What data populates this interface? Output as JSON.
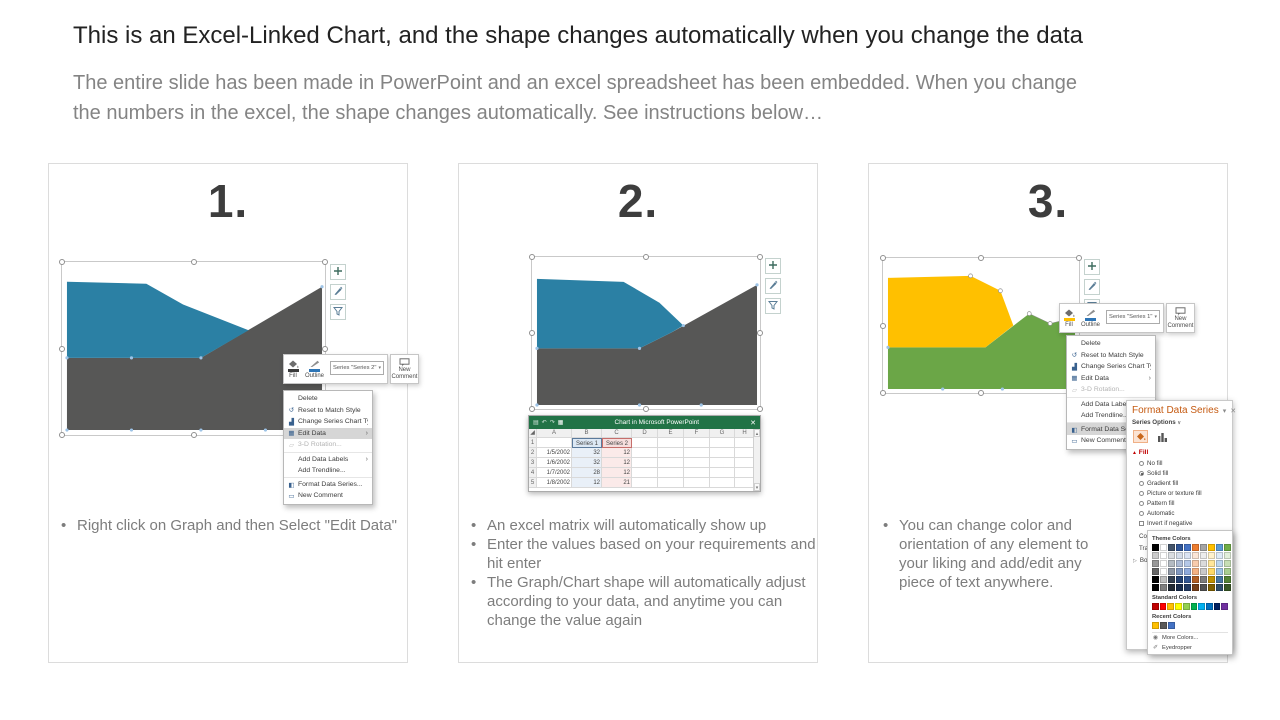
{
  "slide": {
    "title": "This is an Excel-Linked Chart, and the shape changes automatically when you change the data",
    "subtitle": "The entire slide has been made in PowerPoint and an excel spreadsheet has been embedded. When you change the numbers in the excel, the shape changes automatically. See instructions below…"
  },
  "colors": {
    "chart_blue": "#2B80A4",
    "chart_dark_gray": "#575756",
    "chart_yellow": "#FFC000",
    "chart_green": "#6BA647",
    "excel_green": "#217346",
    "pane_title_orange": "#C55A11",
    "fill_heading_red": "#C00000",
    "highlight_gray": "#D6D6D6"
  },
  "cards": [
    {
      "number": "1.",
      "bullets": [
        "Right click on Graph and then Select \"Edit Data\""
      ]
    },
    {
      "number": "2.",
      "bullets": [
        "An excel matrix will automatically show up",
        "Enter the values based on your requirements and hit enter",
        "The Graph/Chart shape will automatically adjust according to your data, and anytime you can change the value again"
      ]
    },
    {
      "number": "3.",
      "bullets": [
        "You can change color and orientation of any element to your liking and add/edit any piece of text anywhere."
      ]
    }
  ],
  "mini_toolbar": {
    "fill_label": "Fill",
    "outline_label": "Outline",
    "series_card1": "Series \"Series 2\"",
    "series_card3": "Series \"Series 1\"",
    "new_comment_label": "New Comment"
  },
  "context_menu": {
    "highlights": [
      3,
      7
    ],
    "items": [
      {
        "label": "Delete",
        "icon": ""
      },
      {
        "label": "Reset to Match Style",
        "icon": "reset-style-icon"
      },
      {
        "label": "Change Series Chart Type...",
        "icon": "chart-type-icon"
      },
      {
        "label": "Edit Data",
        "icon": "edit-data-icon",
        "submenu": true
      },
      {
        "label": "3-D Rotation...",
        "icon": "rotation-3d-icon",
        "disabled": true
      },
      {
        "label": "Add Data Labels",
        "icon": "",
        "submenu": true,
        "group_start": true
      },
      {
        "label": "Add Trendline...",
        "icon": ""
      },
      {
        "label": "Format Data Series...",
        "icon": "paint-bucket-icon",
        "group_start": true
      },
      {
        "label": "New Comment",
        "icon": "comment-icon"
      }
    ]
  },
  "excel": {
    "window_title": "Chart in Microsoft PowerPoint",
    "columns": [
      "A",
      "B",
      "C",
      "D",
      "E",
      "F",
      "G",
      "H"
    ],
    "row_numbers": [
      "1",
      "2",
      "3",
      "4",
      "5"
    ],
    "header_row": [
      "",
      "Series 1",
      "Series 2"
    ],
    "rows": [
      [
        "1/5/2002",
        "32",
        "12"
      ],
      [
        "1/6/2002",
        "32",
        "12"
      ],
      [
        "1/7/2002",
        "28",
        "12"
      ],
      [
        "1/8/2002",
        "12",
        "21"
      ]
    ]
  },
  "chart_data": {
    "type": "area",
    "x": [
      "1/5/2002",
      "1/6/2002",
      "1/7/2002",
      "1/8/2002"
    ],
    "series": [
      {
        "name": "Series 1",
        "values": [
          32,
          32,
          28,
          12
        ]
      },
      {
        "name": "Series 2",
        "values": [
          12,
          12,
          12,
          21
        ]
      }
    ],
    "legend_position": "none",
    "grid": false
  },
  "format_pane": {
    "title": "Format Data Series",
    "series_options": "Series Options",
    "fill_section": "Fill",
    "options": [
      {
        "label": "No fill",
        "selected": false
      },
      {
        "label": "Solid fill",
        "selected": true
      },
      {
        "label": "Gradient fill",
        "selected": false
      },
      {
        "label": "Picture or texture fill",
        "selected": false
      },
      {
        "label": "Pattern fill",
        "selected": false
      },
      {
        "label": "Automatic",
        "selected": false
      }
    ],
    "invert_label": "Invert if negative",
    "color_label": "Color",
    "transparency_label": "Transparency",
    "border_label": "Border"
  },
  "color_picker": {
    "theme_title": "Theme Colors",
    "standard_title": "Standard Colors",
    "recent_title": "Recent Colors",
    "more_label": "More Colors...",
    "eyedropper_label": "Eyedropper",
    "theme_colors": [
      "#000000",
      "#FFFFFF",
      "#44546A",
      "#2F5597",
      "#4472C4",
      "#ED7D31",
      "#A5A5A5",
      "#FFC000",
      "#5B9BD5",
      "#70AD47"
    ],
    "standard_colors": [
      "#C00000",
      "#FF0000",
      "#FFC000",
      "#FFFF00",
      "#92D050",
      "#00B050",
      "#00B0F0",
      "#0070C0",
      "#002060",
      "#7030A0"
    ],
    "recent_colors": [
      "#FFC000",
      "#595959",
      "#4472C4"
    ]
  }
}
